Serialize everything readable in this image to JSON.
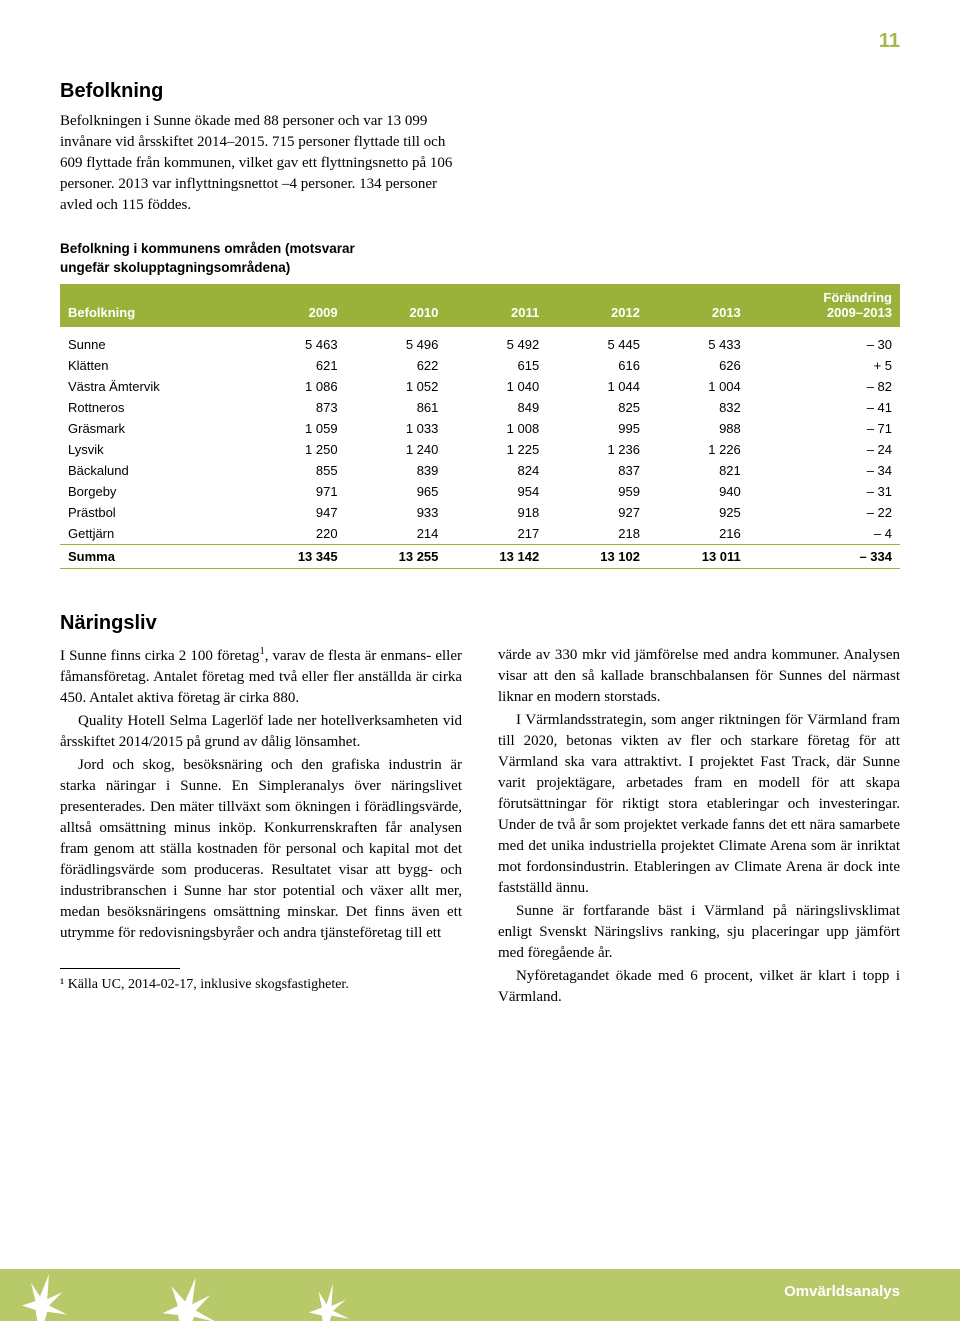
{
  "page_number": "11",
  "colors": {
    "accent_green": "#9ab23a",
    "footer_green": "#b8c96a",
    "text": "#000000",
    "background": "#ffffff",
    "header_text": "#ffffff"
  },
  "typography": {
    "body_font": "Georgia, Times New Roman, serif",
    "heading_font": "Arial, Helvetica, sans-serif",
    "body_size_pt": 11,
    "heading_size_pt": 15,
    "table_size_pt": 10
  },
  "befolkning": {
    "title": "Befolkning",
    "intro": "Befolkningen i Sunne ökade med 88 personer och var 13 099 invånare vid årsskiftet 2014–2015. 715 personer flyttade till och 609 flyttade från kommunen, vilket gav ett flyttningsnetto på 106 personer. 2013 var inflyttningsnettot –4 personer. 134 personer avled och 115 föddes."
  },
  "population_table": {
    "type": "table",
    "caption_line1": "Befolkning i kommunens områden (motsvarar",
    "caption_line2": "ungefär skolupptagningsområdena)",
    "columns": [
      "Befolkning",
      "2009",
      "2010",
      "2011",
      "2012",
      "2013",
      "Förändring 2009–2013"
    ],
    "col_widths_pct": [
      22,
      12,
      12,
      12,
      12,
      12,
      18
    ],
    "header_bg": "#9ab23a",
    "header_color": "#ffffff",
    "rule_color": "#9ab23a",
    "rows": [
      [
        "Sunne",
        "5 463",
        "5 496",
        "5 492",
        "5 445",
        "5 433",
        "– 30"
      ],
      [
        "Klätten",
        "621",
        "622",
        "615",
        "616",
        "626",
        "+ 5"
      ],
      [
        "Västra Ämtervik",
        "1 086",
        "1 052",
        "1 040",
        "1 044",
        "1 004",
        "– 82"
      ],
      [
        "Rottneros",
        "873",
        "861",
        "849",
        "825",
        "832",
        "– 41"
      ],
      [
        "Gräsmark",
        "1 059",
        "1 033",
        "1 008",
        "995",
        "988",
        "– 71"
      ],
      [
        "Lysvik",
        "1 250",
        "1 240",
        "1 225",
        "1 236",
        "1 226",
        "– 24"
      ],
      [
        "Bäckalund",
        "855",
        "839",
        "824",
        "837",
        "821",
        "– 34"
      ],
      [
        "Borgeby",
        "971",
        "965",
        "954",
        "959",
        "940",
        "– 31"
      ],
      [
        "Prästbol",
        "947",
        "933",
        "918",
        "927",
        "925",
        "– 22"
      ],
      [
        "Gettjärn",
        "220",
        "214",
        "217",
        "218",
        "216",
        "– 4"
      ]
    ],
    "summary_row": [
      "Summa",
      "13 345",
      "13 255",
      "13 142",
      "13 102",
      "13 011",
      "– 334"
    ]
  },
  "naringsliv": {
    "title": "Näringsliv",
    "col1_p1": "I Sunne finns cirka 2 100 företag¹, varav de flesta är enmans- eller fåmansföretag. Antalet företag med två eller fler anställda är cirka 450. Antalet aktiva företag är cirka 880.",
    "col1_p2": "Quality Hotell Selma Lagerlöf lade ner hotellverksamheten vid årsskiftet 2014/2015 på grund av dålig lönsamhet.",
    "col1_p3": "Jord och skog, besöksnäring och den grafiska industrin är starka näringar i Sunne. En Simpleranalys över näringslivet presenterades. Den mäter tillväxt som ökningen i förädlingsvärde, alltså omsättning minus inköp. Konkurrenskraften får analysen fram genom att ställa kostnaden för personal och kapital mot det förädlingsvärde som produceras. Resultatet visar att bygg- och industribranschen i Sunne har stor potential och växer allt mer, medan besöksnäringens omsättning minskar. Det finns även ett utrymme för redovisningsbyråer och andra tjänsteföretag till ett",
    "col2_p1": "värde av 330 mkr vid jämförelse med andra kommuner. Analysen visar att den så kallade branschbalansen för Sunnes del närmast liknar en modern storstads.",
    "col2_p2": "I Värmlandsstrategin, som anger riktningen för Värmland fram till 2020, betonas vikten av fler och starkare företag för att Värmland ska vara attraktivt. I projektet Fast Track, där Sunne varit projektägare, arbetades fram en modell för att skapa förutsättningar för riktigt stora etableringar och investeringar. Under de två år som projektet verkade fanns det ett nära samarbete med det unika industriella projektet Climate Arena som är inriktat mot fordonsindustrin. Etableringen av Climate Arena är dock inte fastställd ännu.",
    "col2_p3": "Sunne är fortfarande bäst i Värmland på näringslivsklimat enligt Svenskt Näringslivs ranking, sju placeringar upp jämfört med föregående år.",
    "col2_p4": "Nyföretagandet ökade med 6 procent, vilket är klart i topp i Värmland."
  },
  "footnote": "¹ Källa UC, 2014-02-17, inklusive skogsfastigheter.",
  "footer_label": "Omvärldsanalys"
}
